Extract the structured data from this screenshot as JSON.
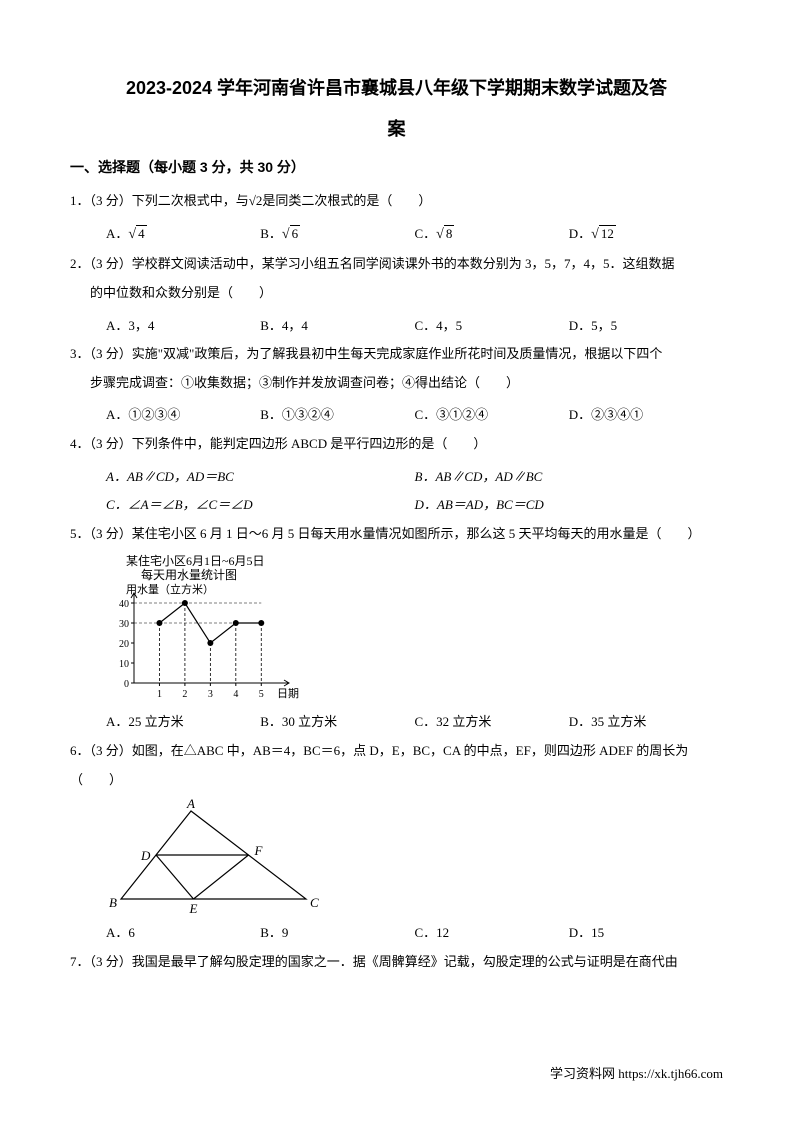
{
  "title_line1": "2023-2024 学年河南省许昌市襄城县八年级下学期期末数学试题及答",
  "title_line2": "案",
  "section1_header": "一、选择题（每小题 3 分，共 30 分）",
  "q1": {
    "text": "1．（3 分）下列二次根式中，与√2是同类二次根式的是（　　）",
    "optA": "A．",
    "optA_sqrt": "4",
    "optB": "B．",
    "optB_sqrt": "6",
    "optC": "C．",
    "optC_sqrt": "8",
    "optD": "D．",
    "optD_sqrt": "12"
  },
  "q2": {
    "text1": "2．（3 分）学校群文阅读活动中，某学习小组五名同学阅读课外书的本数分别为 3，5，7，4，5．这组数据",
    "text2": "的中位数和众数分别是（　　）",
    "optA": "A．3，4",
    "optB": "B．4，4",
    "optC": "C．4，5",
    "optD": "D．5，5"
  },
  "q3": {
    "text1": "3．（3 分）实施\"双减\"政策后，为了解我县初中生每天完成家庭作业所花时间及质量情况，根据以下四个",
    "text2": "步骤完成调查：①收集数据；③制作并发放调查问卷；④得出结论（　　）",
    "optA": "A．①②③④",
    "optB": "B．①③②④",
    "optC": "C．③①②④",
    "optD": "D．②③④①"
  },
  "q4": {
    "text": "4．（3 分）下列条件中，能判定四边形 ABCD 是平行四边形的是（　　）",
    "optA": "A．AB∥CD，AD＝BC",
    "optB": "B．AB∥CD，AD∥BC",
    "optC": "C．∠A＝∠B，∠C＝∠D",
    "optD": "D．AB＝AD，BC＝CD"
  },
  "q5": {
    "text": "5．（3 分）某住宅小区 6 月 1 日～6 月 5 日每天用水量情况如图所示，那么这 5 天平均每天的用水量是（　　）",
    "chart": {
      "title1": "某住宅小区6月1日~6月5日",
      "title2": "每天用水量统计图",
      "ylabel": "用水量（立方米）",
      "xlabel": "日期",
      "yticks": [
        0,
        10,
        20,
        30,
        40
      ],
      "xticks": [
        1,
        2,
        3,
        4,
        5
      ],
      "values": [
        30,
        40,
        20,
        30,
        30
      ],
      "line_color": "#000000",
      "marker_color": "#000000",
      "background": "#ffffff"
    },
    "optA": "A．25 立方米",
    "optB": "B．30 立方米",
    "optC": "C．32 立方米",
    "optD": "D．35 立方米"
  },
  "q6": {
    "text": "6．（3 分）如图，在△ABC 中，AB＝4，BC＝6，点 D，E，BC，CA 的中点，EF，则四边形 ADEF 的周长为（　　）",
    "triangle": {
      "labels": {
        "A": "A",
        "B": "B",
        "C": "C",
        "D": "D",
        "E": "E",
        "F": "F"
      },
      "stroke": "#000000",
      "background": "#ffffff"
    },
    "optA": "A．6",
    "optB": "B．9",
    "optC": "C．12",
    "optD": "D．15"
  },
  "q7": {
    "text": "7．（3 分）我国是最早了解勾股定理的国家之一．据《周髀算经》记载，勾股定理的公式与证明是在商代由"
  },
  "footer": "学习资料网 https://xk.tjh66.com"
}
